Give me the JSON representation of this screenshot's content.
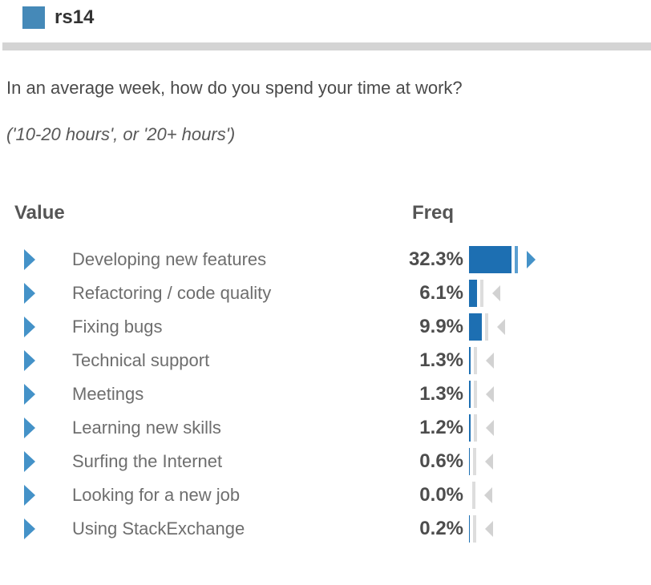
{
  "header": {
    "question_id": "rs14",
    "icon": "blue-square"
  },
  "question": {
    "text": "In an average week, how do you spend your time at work?",
    "subtitle": "('10-20 hours', or '20+ hours')"
  },
  "table": {
    "value_header": "Value",
    "freq_header": "Freq",
    "rows": [
      {
        "label": "Developing new features",
        "freq": "32.3%",
        "pct": 32.3,
        "highlighted": true
      },
      {
        "label": "Refactoring / code quality",
        "freq": "6.1%",
        "pct": 6.1,
        "highlighted": false
      },
      {
        "label": "Fixing bugs",
        "freq": "9.9%",
        "pct": 9.9,
        "highlighted": false
      },
      {
        "label": "Technical support",
        "freq": "1.3%",
        "pct": 1.3,
        "highlighted": false
      },
      {
        "label": "Meetings",
        "freq": "1.3%",
        "pct": 1.3,
        "highlighted": false
      },
      {
        "label": "Learning new skills",
        "freq": "1.2%",
        "pct": 1.2,
        "highlighted": false
      },
      {
        "label": "Surfing the Internet",
        "freq": "0.6%",
        "pct": 0.6,
        "highlighted": false
      },
      {
        "label": "Looking for a new job",
        "freq": "0.0%",
        "pct": 0.0,
        "highlighted": false
      },
      {
        "label": "Using StackExchange",
        "freq": "0.2%",
        "pct": 0.2,
        "highlighted": false
      }
    ]
  },
  "colors": {
    "bar_fill": "#1d6fb2",
    "arrow_blue": "#4492c8",
    "handle_strip_highlighted": "#5b9fd1",
    "handle_strip_gray": "#dddddd",
    "handle_arrow_gray": "#d2d2d2",
    "header_square": "#4589b8",
    "divider": "#d4d4d4"
  },
  "chart_data": {
    "type": "bar",
    "title": "In an average week, how do you spend your time at work?",
    "subtitle": "('10-20 hours', or '20+ hours')",
    "categories": [
      "Developing new features",
      "Refactoring / code quality",
      "Fixing bugs",
      "Technical support",
      "Meetings",
      "Learning new skills",
      "Surfing the Internet",
      "Looking for a new job",
      "Using StackExchange"
    ],
    "values": [
      32.3,
      6.1,
      9.9,
      1.3,
      1.3,
      1.2,
      0.6,
      0.0,
      0.2
    ],
    "xlabel": "Freq",
    "ylabel": "Value",
    "unit": "%",
    "orientation": "horizontal",
    "legend": "none",
    "grid": false
  }
}
